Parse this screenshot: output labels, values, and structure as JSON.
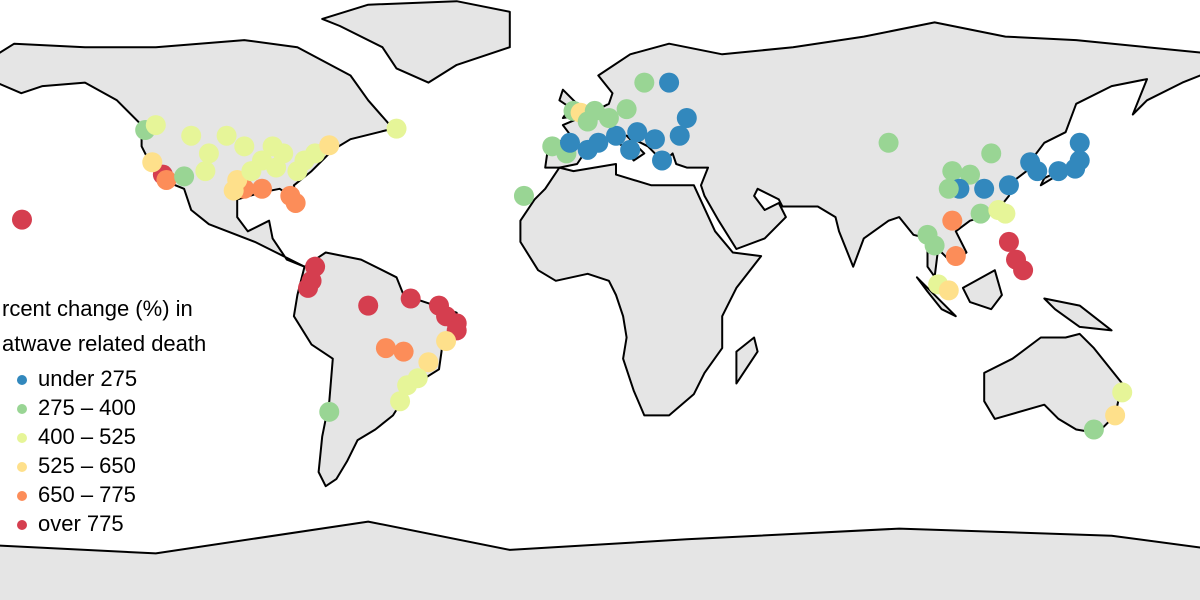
{
  "legend": {
    "title": [
      "rcent change (%) in",
      "atwave related death"
    ],
    "items": [
      {
        "label": "under 275",
        "color": "#3288bd"
      },
      {
        "label": "275 – 400",
        "color": "#99d594"
      },
      {
        "label": "400 – 525",
        "color": "#e6f598"
      },
      {
        "label": "525 – 650",
        "color": "#fee08b"
      },
      {
        "label": "650 – 775",
        "color": "#fc8d59"
      },
      {
        "label": "over 775",
        "color": "#d53e4f"
      }
    ]
  },
  "points": [
    {
      "lon": -123,
      "lat": 46.6,
      "class": 1
    },
    {
      "lon": -118,
      "lat": 34,
      "class": 5
    },
    {
      "lon": -117,
      "lat": 32.5,
      "class": 4
    },
    {
      "lon": -121,
      "lat": 37.5,
      "class": 3
    },
    {
      "lon": -112,
      "lat": 33.5,
      "class": 1
    },
    {
      "lon": -105,
      "lat": 40,
      "class": 2
    },
    {
      "lon": -95,
      "lat": 30,
      "class": 4
    },
    {
      "lon": -90,
      "lat": 30,
      "class": 4
    },
    {
      "lon": -82,
      "lat": 28,
      "class": 4
    },
    {
      "lon": -80.5,
      "lat": 26,
      "class": 4
    },
    {
      "lon": -97,
      "lat": 32.5,
      "class": 3
    },
    {
      "lon": -98,
      "lat": 29.5,
      "class": 3
    },
    {
      "lon": -87,
      "lat": 42,
      "class": 2
    },
    {
      "lon": -75,
      "lat": 40,
      "class": 2
    },
    {
      "lon": -71,
      "lat": 42.3,
      "class": 3
    },
    {
      "lon": -80,
      "lat": 35,
      "class": 2
    },
    {
      "lon": -90,
      "lat": 38,
      "class": 2
    },
    {
      "lon": -100,
      "lat": 45,
      "class": 2
    },
    {
      "lon": -110,
      "lat": 45,
      "class": 2
    },
    {
      "lon": -120,
      "lat": 48,
      "class": 2
    },
    {
      "lon": -95,
      "lat": 42,
      "class": 2
    },
    {
      "lon": -84,
      "lat": 40,
      "class": 2
    },
    {
      "lon": -78,
      "lat": 38,
      "class": 2
    },
    {
      "lon": -86,
      "lat": 36,
      "class": 2
    },
    {
      "lon": -93,
      "lat": 35,
      "class": 2
    },
    {
      "lon": -106,
      "lat": 35,
      "class": 2
    },
    {
      "lon": -52,
      "lat": 47,
      "class": 2
    },
    {
      "lon": -157.8,
      "lat": 21.3,
      "class": 5
    },
    {
      "lon": -75,
      "lat": 8,
      "class": 5
    },
    {
      "lon": -76,
      "lat": 4,
      "class": 5
    },
    {
      "lon": -77,
      "lat": 2,
      "class": 5
    },
    {
      "lon": -60,
      "lat": -3,
      "class": 5
    },
    {
      "lon": -48,
      "lat": -1,
      "class": 5
    },
    {
      "lon": -40,
      "lat": -3,
      "class": 5
    },
    {
      "lon": -38,
      "lat": -6,
      "class": 5
    },
    {
      "lon": -35,
      "lat": -8,
      "class": 5
    },
    {
      "lon": -35,
      "lat": -10,
      "class": 5
    },
    {
      "lon": -55,
      "lat": -15,
      "class": 4
    },
    {
      "lon": -50,
      "lat": -16,
      "class": 4
    },
    {
      "lon": -43,
      "lat": -19,
      "class": 3
    },
    {
      "lon": -38,
      "lat": -13,
      "class": 3
    },
    {
      "lon": -46,
      "lat": -23.5,
      "class": 2
    },
    {
      "lon": -49,
      "lat": -25.5,
      "class": 2
    },
    {
      "lon": -51,
      "lat": -30,
      "class": 2
    },
    {
      "lon": -71,
      "lat": -33,
      "class": 1
    },
    {
      "lon": -4,
      "lat": 40,
      "class": 1
    },
    {
      "lon": -8,
      "lat": 42,
      "class": 1
    },
    {
      "lon": 2,
      "lat": 41,
      "class": 0
    },
    {
      "lon": -3,
      "lat": 43,
      "class": 0
    },
    {
      "lon": 5,
      "lat": 43,
      "class": 0
    },
    {
      "lon": 10,
      "lat": 45,
      "class": 0
    },
    {
      "lon": 14,
      "lat": 41,
      "class": 0
    },
    {
      "lon": 23,
      "lat": 38,
      "class": 0
    },
    {
      "lon": 16,
      "lat": 46,
      "class": 0
    },
    {
      "lon": -2,
      "lat": 52,
      "class": 1
    },
    {
      "lon": 0,
      "lat": 51.5,
      "class": 3
    },
    {
      "lon": 4,
      "lat": 52,
      "class": 1
    },
    {
      "lon": 2,
      "lat": 49,
      "class": 1
    },
    {
      "lon": 13,
      "lat": 52.5,
      "class": 1
    },
    {
      "lon": 8,
      "lat": 50,
      "class": 1
    },
    {
      "lon": 18,
      "lat": 60,
      "class": 1
    },
    {
      "lon": 25,
      "lat": 60,
      "class": 0
    },
    {
      "lon": 30,
      "lat": 50,
      "class": 0
    },
    {
      "lon": 28,
      "lat": 45,
      "class": 0
    },
    {
      "lon": 21,
      "lat": 44,
      "class": 0
    },
    {
      "lon": -16,
      "lat": 28,
      "class": 1
    },
    {
      "lon": 87,
      "lat": 43,
      "class": 1
    },
    {
      "lon": 105,
      "lat": 35,
      "class": 1
    },
    {
      "lon": 110,
      "lat": 34,
      "class": 1
    },
    {
      "lon": 116,
      "lat": 40,
      "class": 1
    },
    {
      "lon": 121,
      "lat": 31,
      "class": 0
    },
    {
      "lon": 114,
      "lat": 30,
      "class": 0
    },
    {
      "lon": 107,
      "lat": 30,
      "class": 0
    },
    {
      "lon": 113,
      "lat": 23,
      "class": 1
    },
    {
      "lon": 118,
      "lat": 24,
      "class": 2
    },
    {
      "lon": 127,
      "lat": 37.5,
      "class": 0
    },
    {
      "lon": 129,
      "lat": 35,
      "class": 0
    },
    {
      "lon": 135,
      "lat": 35,
      "class": 0
    },
    {
      "lon": 139.7,
      "lat": 35.7,
      "class": 0
    },
    {
      "lon": 141,
      "lat": 38,
      "class": 0
    },
    {
      "lon": 141,
      "lat": 43,
      "class": 0
    },
    {
      "lon": 104,
      "lat": 30,
      "class": 1
    },
    {
      "lon": 100,
      "lat": 14,
      "class": 1
    },
    {
      "lon": 98,
      "lat": 17,
      "class": 1
    },
    {
      "lon": 105,
      "lat": 21,
      "class": 4
    },
    {
      "lon": 106,
      "lat": 11,
      "class": 4
    },
    {
      "lon": 101,
      "lat": 3,
      "class": 2
    },
    {
      "lon": 104,
      "lat": 1.3,
      "class": 3
    },
    {
      "lon": 121,
      "lat": 15,
      "class": 5
    },
    {
      "lon": 123,
      "lat": 10,
      "class": 5
    },
    {
      "lon": 125,
      "lat": 7,
      "class": 5
    },
    {
      "lon": 120,
      "lat": 23,
      "class": 2
    },
    {
      "lon": 151,
      "lat": -34,
      "class": 3
    },
    {
      "lon": 153,
      "lat": -27.5,
      "class": 2
    },
    {
      "lon": 145,
      "lat": -38,
      "class": 1
    }
  ]
}
